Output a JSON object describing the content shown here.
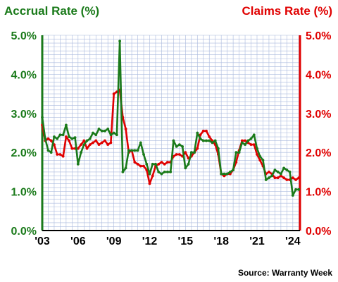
{
  "chart_data": {
    "type": "line",
    "left_axis_title": "Accrual Rate (%)",
    "right_axis_title": "Claims Rate (%)",
    "source": "Source: Warranty Week",
    "xlim": [
      2003.0,
      2024.6
    ],
    "ylim": [
      0,
      5
    ],
    "y_ticks": [
      0,
      1,
      2,
      3,
      4,
      5
    ],
    "y_tick_labels": [
      "0.0%",
      "1.0%",
      "2.0%",
      "3.0%",
      "4.0%",
      "5.0%"
    ],
    "x_ticks": [
      2003,
      2006,
      2009,
      2012,
      2015,
      2018,
      2021,
      2024
    ],
    "x_tick_labels": [
      "'03",
      "'06",
      "'09",
      "'12",
      "'15",
      "'18",
      "'21",
      "'24"
    ],
    "grid": true,
    "colors": {
      "accrual": "#1a7a1a",
      "claims": "#e00000",
      "grid": "#a9b9dd"
    },
    "series": [
      {
        "key": "accrual",
        "color": "#1a7a1a",
        "x": [
          2003.0,
          2003.25,
          2003.5,
          2003.75,
          2004.0,
          2004.25,
          2004.5,
          2004.75,
          2005.0,
          2005.25,
          2005.5,
          2005.75,
          2006.0,
          2006.25,
          2006.5,
          2006.75,
          2007.0,
          2007.25,
          2007.5,
          2007.75,
          2008.0,
          2008.25,
          2008.5,
          2008.75,
          2009.0,
          2009.25,
          2009.5,
          2009.75,
          2010.0,
          2010.25,
          2010.5,
          2010.75,
          2011.0,
          2011.25,
          2011.5,
          2011.75,
          2012.0,
          2012.25,
          2012.5,
          2012.75,
          2013.0,
          2013.25,
          2013.5,
          2013.75,
          2014.0,
          2014.25,
          2014.5,
          2014.75,
          2015.0,
          2015.25,
          2015.5,
          2015.75,
          2016.0,
          2016.25,
          2016.5,
          2016.75,
          2017.0,
          2017.25,
          2017.5,
          2017.75,
          2018.0,
          2018.25,
          2018.5,
          2018.75,
          2019.0,
          2019.25,
          2019.5,
          2019.75,
          2020.0,
          2020.25,
          2020.5,
          2020.75,
          2021.0,
          2021.25,
          2021.5,
          2021.75,
          2022.0,
          2022.25,
          2022.5,
          2022.75,
          2023.0,
          2023.25,
          2023.5,
          2023.75,
          2024.0,
          2024.25,
          2024.5
        ],
        "values": [
          2.9,
          2.35,
          2.05,
          2.0,
          2.4,
          2.35,
          2.45,
          2.45,
          2.7,
          2.4,
          2.35,
          2.38,
          1.7,
          2.0,
          2.2,
          2.3,
          2.35,
          2.5,
          2.45,
          2.6,
          2.55,
          2.55,
          2.6,
          2.45,
          2.5,
          2.45,
          4.85,
          1.5,
          1.6,
          2.05,
          2.05,
          2.05,
          2.05,
          2.25,
          1.95,
          1.7,
          1.45,
          1.7,
          1.7,
          1.5,
          1.45,
          1.5,
          1.5,
          1.5,
          2.3,
          2.15,
          2.2,
          2.15,
          1.6,
          1.7,
          2.0,
          2.0,
          2.5,
          2.35,
          2.3,
          2.3,
          2.3,
          2.25,
          2.3,
          2.1,
          1.45,
          1.45,
          1.45,
          1.5,
          1.55,
          2.0,
          2.0,
          2.25,
          2.2,
          2.3,
          2.35,
          2.45,
          2.1,
          1.9,
          1.8,
          1.3,
          1.35,
          1.4,
          1.55,
          1.5,
          1.45,
          1.6,
          1.55,
          1.5,
          0.9,
          1.05,
          1.05
        ]
      },
      {
        "key": "claims",
        "color": "#e00000",
        "x": [
          2003.0,
          2003.25,
          2003.5,
          2003.75,
          2004.0,
          2004.25,
          2004.5,
          2004.75,
          2005.0,
          2005.25,
          2005.5,
          2005.75,
          2006.0,
          2006.25,
          2006.5,
          2006.75,
          2007.0,
          2007.25,
          2007.5,
          2007.75,
          2008.0,
          2008.25,
          2008.5,
          2008.75,
          2009.0,
          2009.25,
          2009.5,
          2009.75,
          2010.0,
          2010.25,
          2010.5,
          2010.75,
          2011.0,
          2011.25,
          2011.5,
          2011.75,
          2012.0,
          2012.25,
          2012.5,
          2012.75,
          2013.0,
          2013.25,
          2013.5,
          2013.75,
          2014.0,
          2014.25,
          2014.5,
          2014.75,
          2015.0,
          2015.25,
          2015.5,
          2015.75,
          2016.0,
          2016.25,
          2016.5,
          2016.75,
          2017.0,
          2017.25,
          2017.5,
          2017.75,
          2018.0,
          2018.25,
          2018.5,
          2018.75,
          2019.0,
          2019.25,
          2019.5,
          2019.75,
          2020.0,
          2020.25,
          2020.5,
          2020.75,
          2021.0,
          2021.25,
          2021.5,
          2021.75,
          2022.0,
          2022.25,
          2022.5,
          2022.75,
          2023.0,
          2023.25,
          2023.5,
          2023.75,
          2024.0,
          2024.25,
          2024.5
        ],
        "values": [
          2.7,
          2.3,
          2.35,
          2.3,
          2.2,
          1.95,
          1.95,
          1.9,
          2.4,
          2.3,
          2.1,
          2.1,
          2.1,
          2.2,
          2.3,
          2.1,
          2.2,
          2.25,
          2.3,
          2.2,
          2.25,
          2.3,
          2.2,
          2.25,
          3.5,
          3.55,
          3.6,
          2.9,
          2.6,
          2.0,
          2.05,
          1.75,
          1.7,
          1.65,
          1.65,
          1.55,
          1.2,
          1.4,
          1.65,
          1.7,
          1.75,
          1.7,
          1.75,
          1.75,
          1.9,
          1.95,
          1.95,
          1.9,
          2.0,
          1.85,
          1.9,
          2.0,
          2.1,
          2.45,
          2.55,
          2.55,
          2.4,
          2.3,
          2.2,
          1.95,
          1.45,
          1.4,
          1.45,
          1.45,
          1.55,
          1.75,
          2.05,
          2.3,
          2.3,
          2.25,
          2.2,
          2.2,
          1.95,
          1.8,
          1.65,
          1.45,
          1.5,
          1.45,
          1.35,
          1.35,
          1.4,
          1.35,
          1.3,
          1.3,
          1.35,
          1.3,
          1.35
        ]
      }
    ]
  }
}
